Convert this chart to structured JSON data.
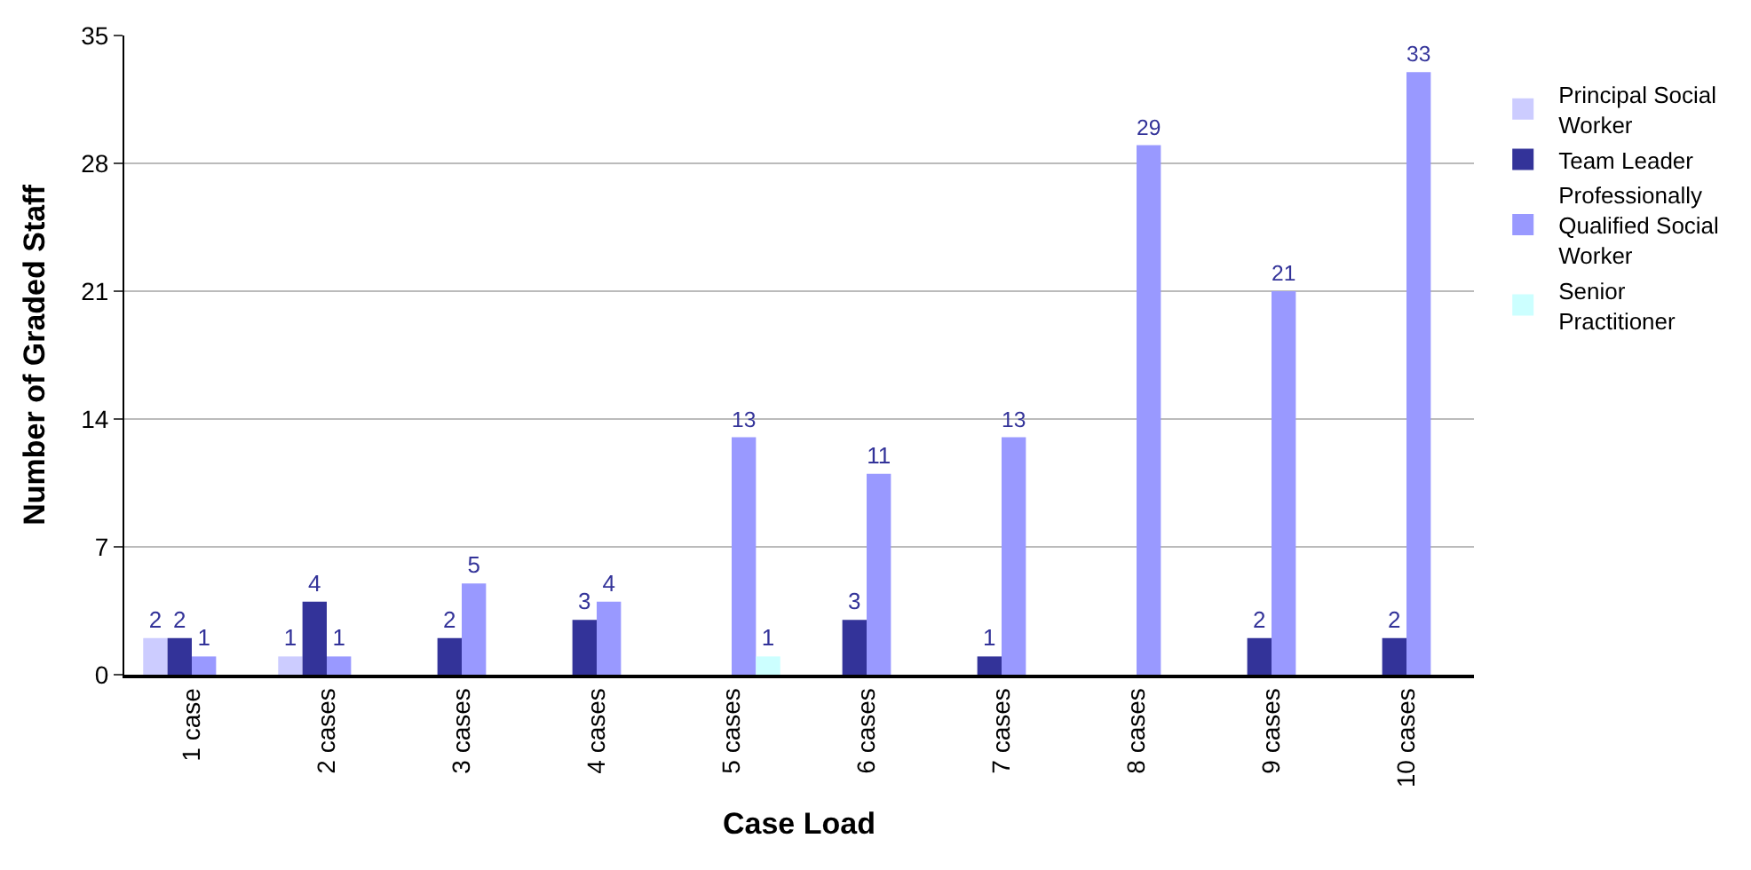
{
  "chart_data": {
    "type": "bar",
    "xlabel": "Case Load",
    "ylabel": "Number of Graded Staff",
    "categories": [
      "1 case",
      "2 cases",
      "3 cases",
      "4 cases",
      "5 cases",
      "6 cases",
      "7 cases",
      "8 cases",
      "9 cases",
      "10 cases"
    ],
    "series": [
      {
        "name": "Principal Social Worker",
        "color": "#ccccff",
        "values": [
          2,
          1,
          null,
          null,
          null,
          null,
          null,
          null,
          null,
          null
        ]
      },
      {
        "name": "Team Leader",
        "color": "#333399",
        "values": [
          2,
          4,
          2,
          3,
          null,
          3,
          1,
          null,
          2,
          2
        ]
      },
      {
        "name": "Professionally Qualified Social Worker",
        "color": "#9999ff",
        "values": [
          1,
          1,
          5,
          4,
          13,
          11,
          13,
          29,
          21,
          33
        ]
      },
      {
        "name": "Senior Practitioner",
        "color": "#ccffff",
        "values": [
          null,
          null,
          null,
          null,
          1,
          null,
          null,
          null,
          null,
          null
        ]
      }
    ],
    "ylim": [
      0,
      35
    ],
    "yticks": [
      0,
      7,
      14,
      21,
      28,
      35
    ],
    "grid": "y",
    "legend": "right",
    "data_labels": true
  }
}
